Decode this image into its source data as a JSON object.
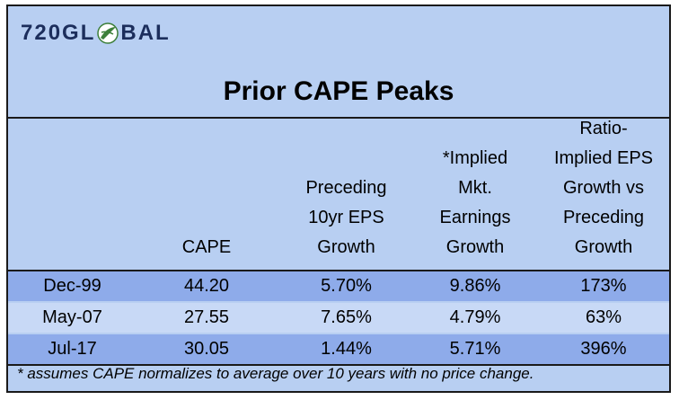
{
  "logo": {
    "text_before": "720GL",
    "text_after": "BAL",
    "globe_icon": "globe-leaf-icon",
    "globe_color": "#3d7f3a"
  },
  "title": "Prior CAPE Peaks",
  "columns": [
    "",
    "CAPE",
    "Preceding\n10yr EPS\nGrowth",
    "*Implied\nMkt.\nEarnings\nGrowth",
    "Ratio-\nImplied EPS\nGrowth vs\nPreceding\nGrowth"
  ],
  "rows": [
    {
      "label": "Dec-99",
      "cape": "44.20",
      "preceding": "5.70%",
      "implied": "9.86%",
      "ratio": "173%"
    },
    {
      "label": "May-07",
      "cape": "27.55",
      "preceding": "7.65%",
      "implied": "4.79%",
      "ratio": "63%"
    },
    {
      "label": "Jul-17",
      "cape": "30.05",
      "preceding": "1.44%",
      "implied": "5.71%",
      "ratio": "396%"
    }
  ],
  "footnote": "* assumes CAPE normalizes to average over 10 years with no price change.",
  "colors": {
    "background": "#b8cff2",
    "row_dark": "#8eabea",
    "row_light": "#c8d9f6",
    "logo_text": "#1c2e5c"
  }
}
